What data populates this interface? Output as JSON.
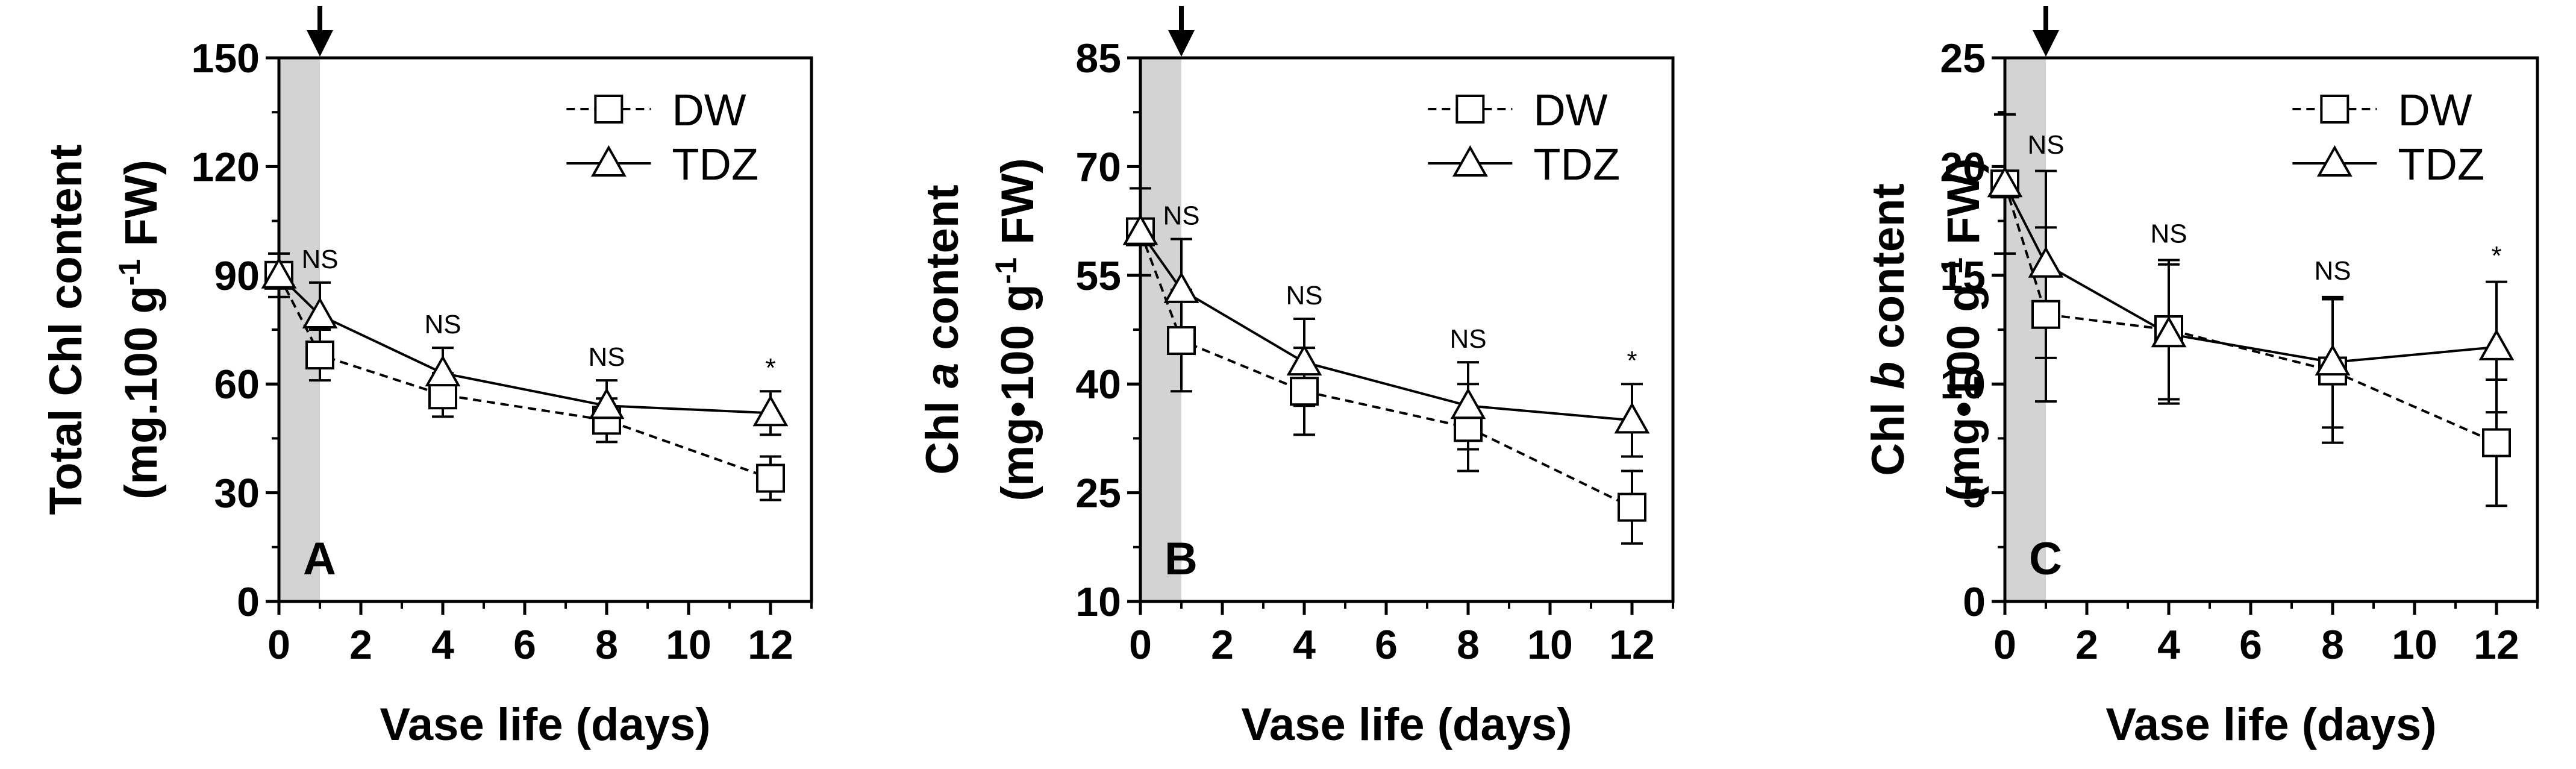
{
  "chart_data": [
    {
      "type": "line",
      "panel_label": "A",
      "xlabel": "Vase life (days)",
      "ylabel_parts": [
        {
          "text": "Total Chl content",
          "style": "normal"
        },
        {
          "text": "(mg.100 g",
          "style": "normal"
        },
        {
          "text": "-1",
          "style": "sup"
        },
        {
          "text": " FW)",
          "style": "normal"
        }
      ],
      "xlim": [
        0,
        13
      ],
      "ylim": [
        0,
        150
      ],
      "xticks": [
        0,
        2,
        4,
        6,
        8,
        10,
        12
      ],
      "xtick_labels": [
        "0",
        "2",
        "4",
        "6",
        "8",
        "10",
        "12"
      ],
      "yticks": [
        0,
        30,
        60,
        90,
        120,
        150
      ],
      "ytick_labels": [
        "0",
        "30",
        "60",
        "90",
        "120",
        "150"
      ],
      "shaded_region_x": [
        0,
        1
      ],
      "arrow_at_x": 1,
      "legend_position": "top-right",
      "series": [
        {
          "name": "DW",
          "marker": "square",
          "line": "dashed",
          "x": [
            0,
            1,
            4,
            8,
            12
          ],
          "y": [
            90,
            68,
            57,
            50,
            34
          ],
          "err": [
            6,
            7,
            6,
            6,
            6
          ]
        },
        {
          "name": "TDZ",
          "marker": "triangle",
          "line": "solid",
          "x": [
            0,
            1,
            4,
            8,
            12
          ],
          "y": [
            90,
            79,
            63,
            54,
            52
          ],
          "err": [
            6,
            9,
            7,
            7,
            6
          ]
        }
      ],
      "significance": [
        {
          "x": 1,
          "y": 92,
          "text": "NS"
        },
        {
          "x": 4,
          "y": 74,
          "text": "NS"
        },
        {
          "x": 8,
          "y": 65,
          "text": "NS"
        },
        {
          "x": 12,
          "y": 62,
          "text": "*"
        }
      ]
    },
    {
      "type": "line",
      "panel_label": "B",
      "xlabel": "Vase life (days)",
      "ylabel_parts": [
        {
          "text": "Chl ",
          "style": "normal"
        },
        {
          "text": "a",
          "style": "italic"
        },
        {
          "text": " content",
          "style": "normal"
        },
        {
          "text": "(mg•100 g",
          "style": "normal"
        },
        {
          "text": "-1",
          "style": "sup"
        },
        {
          "text": " FW)",
          "style": "normal"
        }
      ],
      "xlim": [
        0,
        13
      ],
      "ylim": [
        10,
        85
      ],
      "xticks": [
        0,
        2,
        4,
        6,
        8,
        10,
        12
      ],
      "xtick_labels": [
        "0",
        "2",
        "4",
        "6",
        "8",
        "10",
        "12"
      ],
      "yticks": [
        10,
        25,
        40,
        55,
        70,
        85
      ],
      "ytick_labels": [
        "10",
        "25",
        "40",
        "55",
        "70",
        "85"
      ],
      "shaded_region_x": [
        0,
        1
      ],
      "arrow_at_x": 1,
      "legend_position": "top-right",
      "series": [
        {
          "name": "DW",
          "marker": "square",
          "line": "dashed",
          "x": [
            0,
            1,
            4,
            8,
            12
          ],
          "y": [
            61,
            46,
            39,
            34,
            23
          ],
          "err": [
            6,
            7,
            6,
            6,
            5
          ]
        },
        {
          "name": "TDZ",
          "marker": "triangle",
          "line": "solid",
          "x": [
            0,
            1,
            4,
            8,
            12
          ],
          "y": [
            61,
            53,
            43,
            37,
            35
          ],
          "err": [
            6,
            7,
            6,
            6,
            5
          ]
        }
      ],
      "significance": [
        {
          "x": 1,
          "y": 62,
          "text": "NS"
        },
        {
          "x": 4,
          "y": 51,
          "text": "NS"
        },
        {
          "x": 8,
          "y": 45,
          "text": "NS"
        },
        {
          "x": 12,
          "y": 42,
          "text": "*"
        }
      ]
    },
    {
      "type": "line",
      "panel_label": "C",
      "xlabel": "Vase life (days)",
      "ylabel_parts": [
        {
          "text": "Chl ",
          "style": "normal"
        },
        {
          "text": "b",
          "style": "italic"
        },
        {
          "text": " content",
          "style": "normal"
        },
        {
          "text": "(mg•100 g",
          "style": "normal"
        },
        {
          "text": "-1",
          "style": "sup"
        },
        {
          "text": " FW)",
          "style": "normal"
        }
      ],
      "xlim": [
        0,
        13
      ],
      "ylim": [
        0,
        25
      ],
      "xticks": [
        0,
        2,
        4,
        6,
        8,
        10,
        12
      ],
      "xtick_labels": [
        "0",
        "2",
        "4",
        "6",
        "8",
        "10",
        "12"
      ],
      "yticks": [
        0,
        5,
        10,
        15,
        20,
        25
      ],
      "ytick_labels": [
        "0",
        "5",
        "10",
        "15",
        "20",
        "25"
      ],
      "shaded_region_x": [
        0,
        1
      ],
      "arrow_at_x": 1,
      "legend_position": "top-right",
      "series": [
        {
          "name": "DW",
          "marker": "square",
          "line": "dashed",
          "x": [
            0,
            1,
            4,
            8,
            12
          ],
          "y": [
            19.2,
            13.2,
            12.5,
            10.6,
            7.3
          ],
          "err": [
            3.2,
            4.0,
            3.2,
            3.3,
            2.9
          ]
        },
        {
          "name": "TDZ",
          "marker": "triangle",
          "line": "solid",
          "x": [
            0,
            1,
            4,
            8,
            12
          ],
          "y": [
            19.2,
            15.5,
            12.3,
            11.0,
            11.7
          ],
          "err": [
            3.2,
            4.3,
            3.2,
            3.0,
            3.0
          ]
        }
      ],
      "significance": [
        {
          "x": 1,
          "y": 20.6,
          "text": "NS"
        },
        {
          "x": 4,
          "y": 16.5,
          "text": "NS"
        },
        {
          "x": 8,
          "y": 14.8,
          "text": "NS"
        },
        {
          "x": 12,
          "y": 15.5,
          "text": "*"
        }
      ]
    }
  ]
}
